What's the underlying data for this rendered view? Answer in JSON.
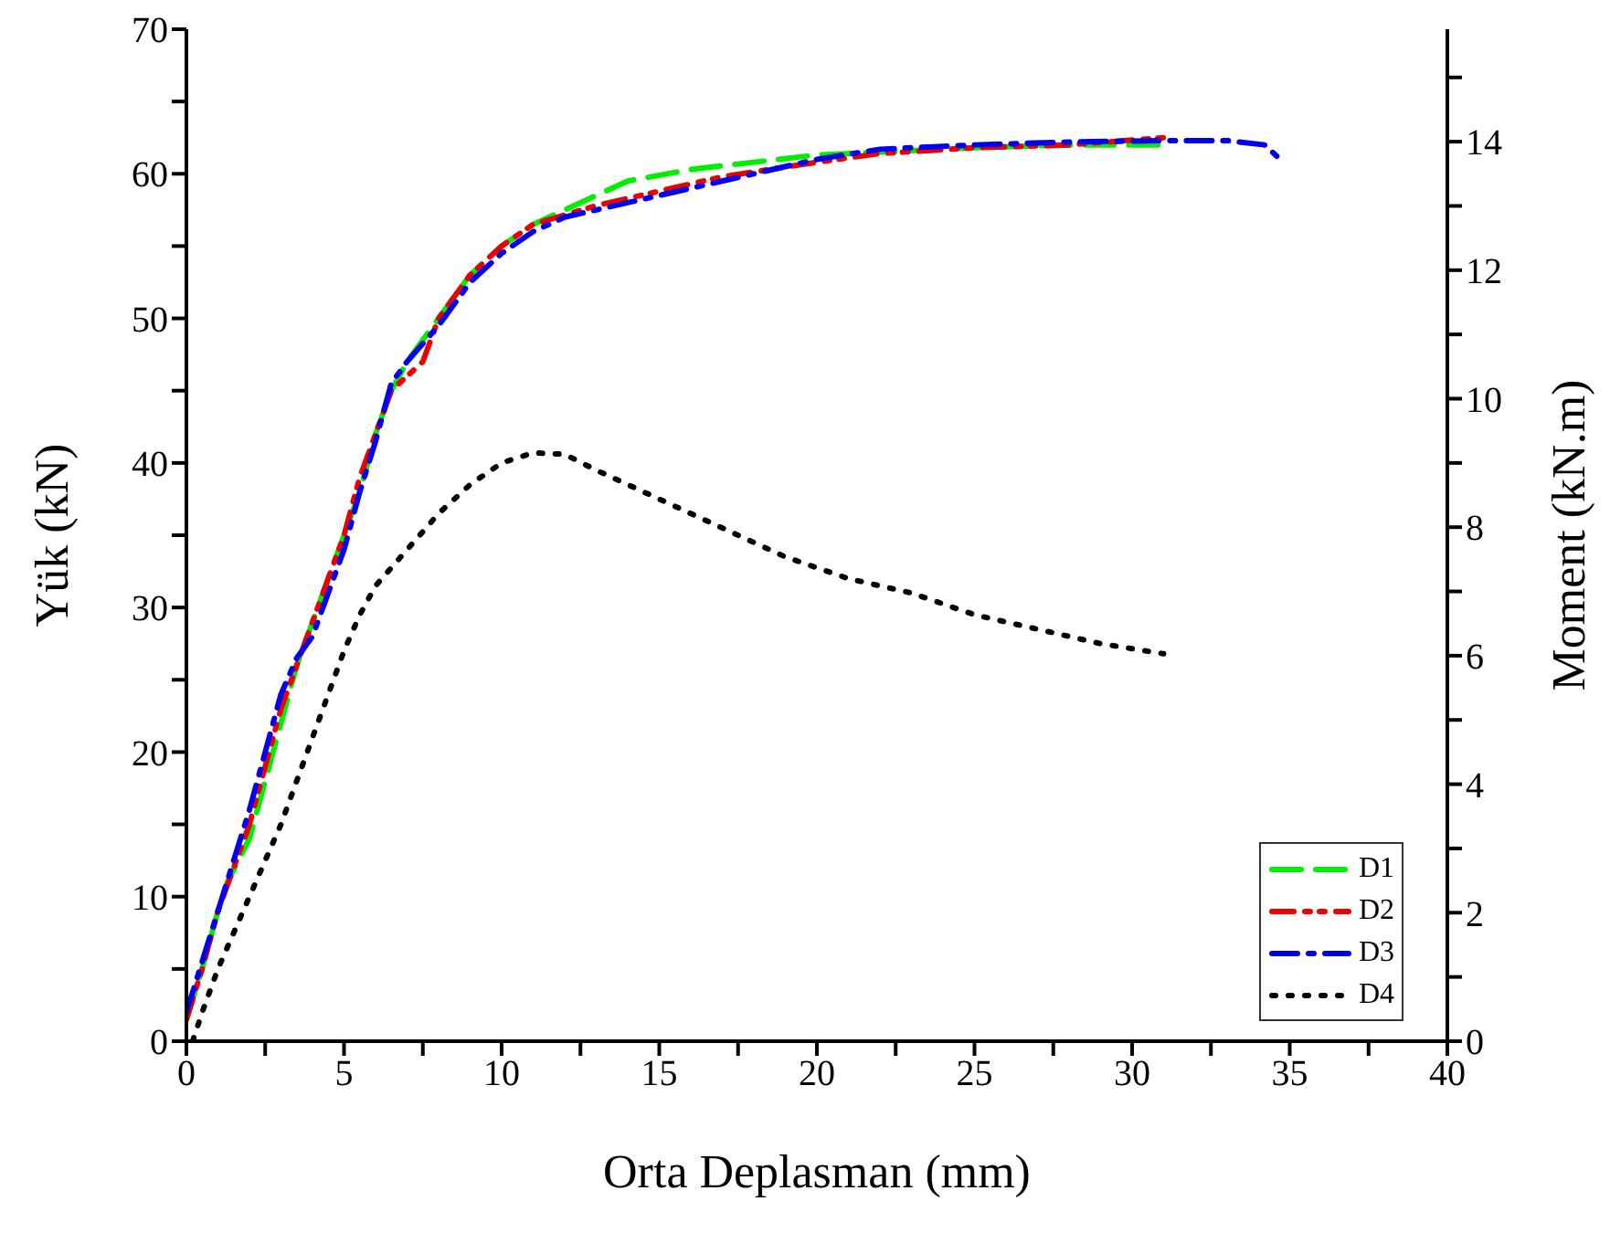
{
  "chart_data": {
    "type": "line",
    "xlabel": "Orta Deplasman (mm)",
    "ylabel": "Yük (kN)",
    "y2label": "Moment (kN.m)",
    "xlim": [
      0,
      40
    ],
    "xticks": [
      0,
      {
        "value": 2.5,
        "label": null
      },
      5,
      {
        "value": 7.5,
        "label": null
      },
      10,
      {
        "value": 12.5,
        "label": null
      },
      15,
      {
        "value": 17.5,
        "label": null
      },
      20,
      {
        "value": 22.5,
        "label": null
      },
      25,
      {
        "value": 27.5,
        "label": null
      },
      30,
      {
        "value": 32.5,
        "label": null
      },
      35,
      {
        "value": 37.5,
        "label": null
      },
      40
    ],
    "ylim": [
      0,
      70
    ],
    "yticks": [
      0,
      {
        "value": 5,
        "label": null
      },
      10,
      {
        "value": 15,
        "label": null
      },
      20,
      {
        "value": 25,
        "label": null
      },
      30,
      {
        "value": 35,
        "label": null
      },
      40,
      {
        "value": 45,
        "label": null
      },
      50,
      {
        "value": 55,
        "label": null
      },
      60,
      {
        "value": 65,
        "label": null
      },
      70
    ],
    "y2lim": [
      0,
      15.75
    ],
    "y2ticks": [
      0,
      {
        "value": 1,
        "label": null
      },
      2,
      {
        "value": 3,
        "label": null
      },
      4,
      {
        "value": 5,
        "label": null
      },
      6,
      {
        "value": 7,
        "label": null
      },
      8,
      {
        "value": 9,
        "label": null
      },
      10,
      {
        "value": 11,
        "label": null
      },
      12,
      {
        "value": 13,
        "label": null
      },
      14,
      {
        "value": 15,
        "label": null
      }
    ],
    "legend": "bottom right",
    "marker": "none",
    "series": [
      {
        "name": "D1",
        "color": "#00ee00",
        "line_style": "dashed",
        "x": [
          0,
          0.5,
          1,
          1.3,
          2,
          2.5,
          3,
          3.5,
          4,
          5,
          5.5,
          6,
          6.5,
          7,
          8,
          9,
          10,
          11,
          12,
          13,
          14,
          16,
          18,
          20,
          22,
          25,
          28,
          31
        ],
        "values": [
          1.5,
          5,
          9,
          11,
          14,
          18,
          22,
          26,
          29,
          35,
          38,
          42,
          45,
          47,
          50,
          53,
          55,
          56.5,
          57.5,
          58.5,
          59.5,
          60.3,
          60.8,
          61.3,
          61.5,
          61.8,
          62,
          62
        ]
      },
      {
        "name": "D2",
        "color": "#ee0000",
        "line_style": "dashdotdot",
        "x": [
          0,
          0.5,
          1,
          1.5,
          2,
          2.5,
          3,
          4,
          5,
          5.5,
          6,
          6.5,
          7,
          7.5,
          8,
          9,
          10,
          11,
          13,
          15,
          17,
          20,
          22,
          25,
          28,
          31
        ],
        "values": [
          1.5,
          5,
          9,
          12,
          15,
          19,
          23,
          29,
          35,
          39,
          42,
          45,
          46,
          47,
          50,
          53,
          55,
          56.5,
          57.8,
          58.8,
          59.8,
          60.8,
          61.4,
          61.8,
          62,
          62.5
        ]
      },
      {
        "name": "D3",
        "color": "#0000ee",
        "line_style": "dashdot",
        "x": [
          0,
          0.5,
          1,
          1.5,
          2,
          2.5,
          3,
          3.5,
          4,
          5,
          5.5,
          6,
          6.5,
          7,
          8,
          9,
          10,
          11,
          12,
          14,
          16,
          18,
          20,
          22,
          25,
          28,
          31,
          33,
          34.2,
          34.6
        ],
        "values": [
          2,
          5.5,
          9,
          12.5,
          16,
          20,
          24,
          26.5,
          28,
          34,
          38,
          41.5,
          45.5,
          47,
          49.5,
          52.5,
          54.5,
          56,
          57,
          58,
          59,
          60,
          61,
          61.7,
          62,
          62.2,
          62.3,
          62.3,
          62,
          61.2
        ]
      },
      {
        "name": "D4",
        "color": "#000000",
        "line_style": "dotted",
        "x": [
          0.2,
          0.5,
          1,
          1.5,
          2,
          3,
          4,
          5,
          5.5,
          6,
          7,
          8,
          9,
          10,
          11,
          12,
          13,
          15,
          17,
          19,
          21,
          23,
          25,
          27,
          29,
          31
        ],
        "values": [
          0,
          2,
          5,
          7.5,
          10,
          15,
          21,
          27,
          29.5,
          31.5,
          34,
          36.5,
          38.5,
          40,
          40.7,
          40.6,
          39.5,
          37.5,
          35.5,
          33.5,
          32,
          31,
          29.5,
          28.5,
          27.5,
          26.8
        ]
      }
    ]
  }
}
